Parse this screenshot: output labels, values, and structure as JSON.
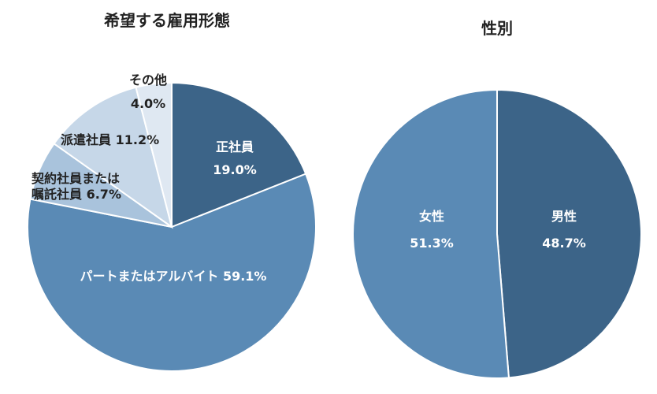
{
  "chart_data": [
    {
      "type": "pie",
      "title": "希望する雇用形態",
      "start_angle_deg": 0,
      "direction": "clockwise",
      "slices": [
        {
          "name": "正社員",
          "value": 19.0,
          "label": "正社員",
          "value_label": "19.0%",
          "color": "#3c6488"
        },
        {
          "name": "パートまたはアルバイト",
          "value": 59.1,
          "label": "パートまたはアルバイト",
          "value_label": "59.1%",
          "color": "#5a8ab5"
        },
        {
          "name": "契約社員または嘱託社員",
          "value": 6.7,
          "label": "契約社員または",
          "label2": "嘱託社員",
          "value_label": "6.7%",
          "color": "#a9c3dc"
        },
        {
          "name": "派遣社員",
          "value": 11.2,
          "label": "派遣社員",
          "value_label": "11.2%",
          "color": "#c6d7e8"
        },
        {
          "name": "その他",
          "value": 4.0,
          "label": "その他",
          "value_label": "4.0%",
          "color": "#dfe8f2"
        }
      ]
    },
    {
      "type": "pie",
      "title": "性別",
      "start_angle_deg": 0,
      "direction": "clockwise",
      "slices": [
        {
          "name": "男性",
          "value": 48.7,
          "label": "男性",
          "value_label": "48.7%",
          "color": "#3c6488"
        },
        {
          "name": "女性",
          "value": 51.3,
          "label": "女性",
          "value_label": "51.3%",
          "color": "#5a8ab5"
        }
      ]
    }
  ]
}
